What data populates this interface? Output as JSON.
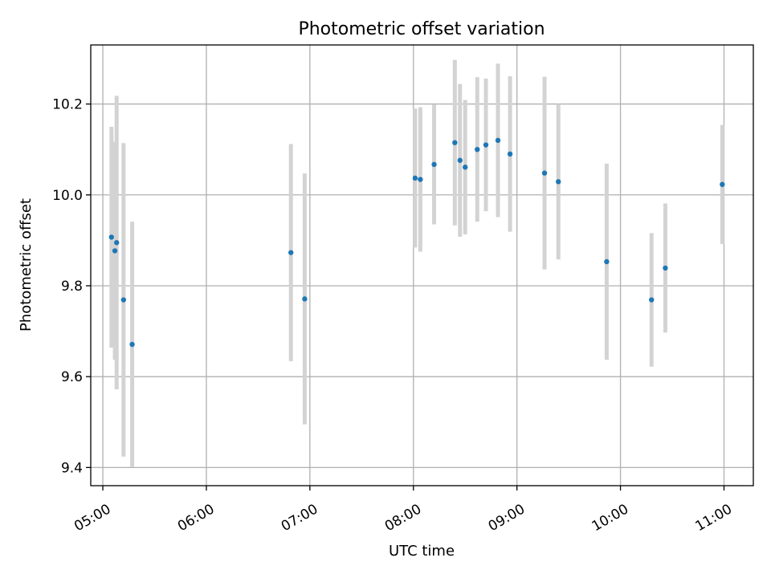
{
  "chart_data": {
    "type": "scatter",
    "title": "Photometric offset variation",
    "xlabel": "UTC time",
    "ylabel": "Photometric offset",
    "x_unit": "UTC time (HH:MM)",
    "xlim": [
      "04:53",
      "11:17"
    ],
    "ylim": [
      9.36,
      10.33
    ],
    "x_ticks": [
      "05:00",
      "06:00",
      "07:00",
      "08:00",
      "09:00",
      "10:00",
      "11:00"
    ],
    "y_ticks": [
      9.4,
      9.6,
      9.8,
      10.0,
      10.2
    ],
    "y_tick_labels": [
      "9.4",
      "9.6",
      "9.8",
      "10.0",
      "10.2"
    ],
    "x_tick_rotation_deg": 30,
    "grid": true,
    "legend": "none",
    "colors": {
      "points": "#1f77b4",
      "errorbars": "#d3d3d3",
      "grid": "#b0b0b0"
    },
    "series": [
      {
        "points": [
          {
            "x": "05:05",
            "y": 9.907,
            "err": 0.243
          },
          {
            "x": "05:07",
            "y": 9.877,
            "err": 0.24
          },
          {
            "x": "05:08",
            "y": 9.895,
            "err": 0.323
          },
          {
            "x": "05:12",
            "y": 9.769,
            "err": 0.345
          },
          {
            "x": "05:17",
            "y": 9.671,
            "err": 0.27
          },
          {
            "x": "06:49",
            "y": 9.873,
            "err": 0.239
          },
          {
            "x": "06:57",
            "y": 9.771,
            "err": 0.276
          },
          {
            "x": "08:01",
            "y": 10.037,
            "err": 0.153
          },
          {
            "x": "08:04",
            "y": 10.034,
            "err": 0.159
          },
          {
            "x": "08:12",
            "y": 10.067,
            "err": 0.132
          },
          {
            "x": "08:24",
            "y": 10.115,
            "err": 0.182
          },
          {
            "x": "08:27",
            "y": 10.076,
            "err": 0.168
          },
          {
            "x": "08:30",
            "y": 10.061,
            "err": 0.148
          },
          {
            "x": "08:37",
            "y": 10.1,
            "err": 0.159
          },
          {
            "x": "08:42",
            "y": 10.11,
            "err": 0.146
          },
          {
            "x": "08:49",
            "y": 10.12,
            "err": 0.169
          },
          {
            "x": "08:56",
            "y": 10.09,
            "err": 0.171
          },
          {
            "x": "09:16",
            "y": 10.048,
            "err": 0.212
          },
          {
            "x": "09:24",
            "y": 10.029,
            "err": 0.171
          },
          {
            "x": "09:52",
            "y": 9.853,
            "err": 0.216
          },
          {
            "x": "10:18",
            "y": 9.769,
            "err": 0.147
          },
          {
            "x": "10:26",
            "y": 9.839,
            "err": 0.142
          },
          {
            "x": "10:59",
            "y": 10.023,
            "err": 0.131
          }
        ]
      }
    ]
  }
}
